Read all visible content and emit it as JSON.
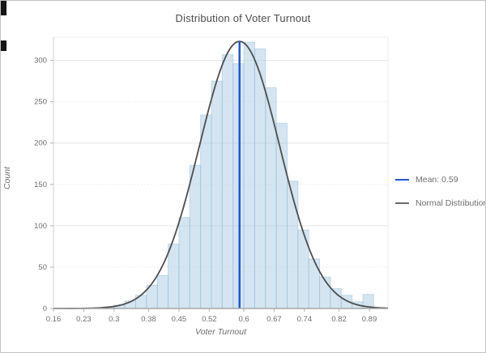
{
  "window": {
    "background": "#ffffff",
    "border_color": "#c2c2c2"
  },
  "chart_data": {
    "type": "bar",
    "subtype": "histogram-with-normal-curve",
    "title": "Distribution of Voter Turnout",
    "xlabel": "Voter Turnout",
    "ylabel": "Count",
    "x_ticks": [
      {
        "label": "0.16",
        "value": 0.16
      },
      {
        "label": "0.23",
        "value": 0.23
      },
      {
        "label": "0.3",
        "value": 0.3
      },
      {
        "label": "0.38",
        "value": 0.38
      },
      {
        "label": "0.45",
        "value": 0.45
      },
      {
        "label": "0.52",
        "value": 0.52
      },
      {
        "label": "0.6",
        "value": 0.6
      },
      {
        "label": "0.67",
        "value": 0.67
      },
      {
        "label": "0.74",
        "value": 0.74
      },
      {
        "label": "0.82",
        "value": 0.82
      },
      {
        "label": "0.89",
        "value": 0.89
      }
    ],
    "y_ticks": [
      0,
      50,
      100,
      150,
      200,
      250,
      300
    ],
    "xlim": [
      0.16,
      0.933
    ],
    "ylim": [
      0,
      328
    ],
    "grid": "horizontal",
    "legend_position": "right",
    "bins": {
      "start": 0.275,
      "width": 0.025,
      "counts": [
        2,
        4,
        9,
        16,
        28,
        40,
        78,
        110,
        173,
        234,
        275,
        307,
        296,
        322,
        314,
        267,
        224,
        154,
        95,
        60,
        38,
        24,
        16,
        8,
        17,
        1
      ]
    },
    "normal_curve": {
      "mean": 0.59,
      "sigma": 0.093,
      "peak": 323,
      "color": "#4d4d4d",
      "label": "Normal Distribution"
    },
    "mean_line": {
      "value": 0.59,
      "color": "#2056d3",
      "label": "Mean: 0.59"
    },
    "colors": {
      "bar_fill": "#aacce3",
      "bar_edge": "#8fb8d4",
      "grid_major": "#e4e4e4",
      "grid_minor": "#ebebeb",
      "x_axis": "#a6a6a6",
      "y_axis": "#d2d2d2",
      "plot_border": "#ededed"
    },
    "legend": [
      {
        "label": "Mean: 0.59",
        "swatch_color": "#2056d3"
      },
      {
        "label": "Normal Distribution",
        "swatch_color": "#6a6a6a"
      }
    ]
  }
}
